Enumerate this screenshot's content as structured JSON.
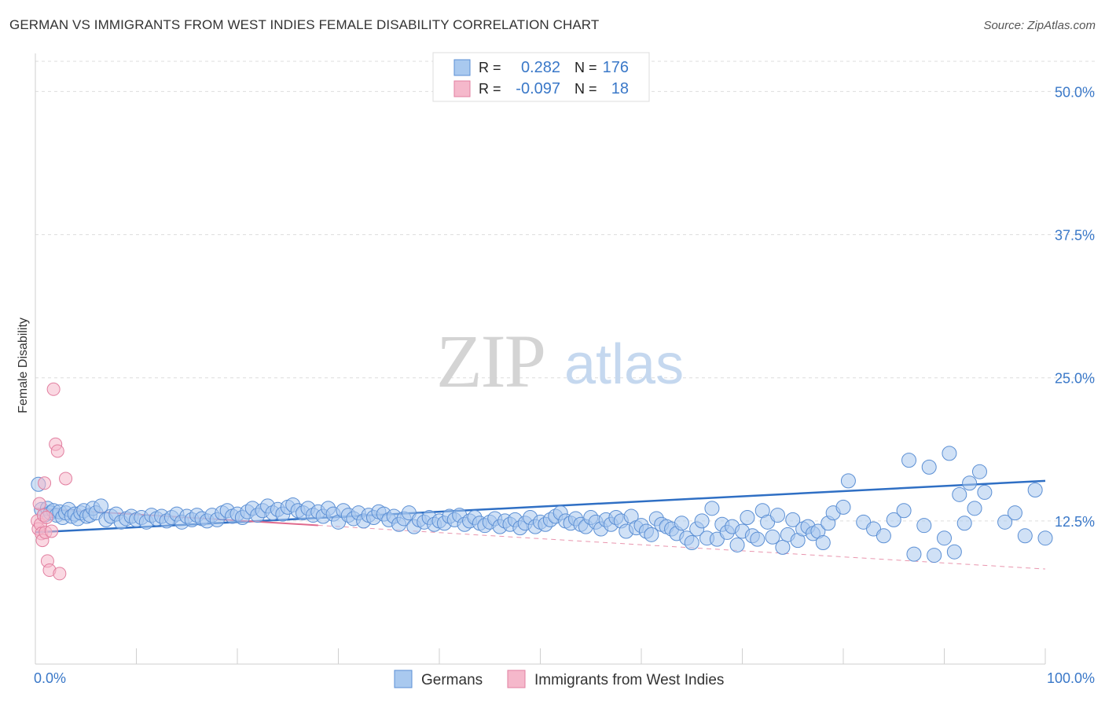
{
  "title": "GERMAN VS IMMIGRANTS FROM WEST INDIES FEMALE DISABILITY CORRELATION CHART",
  "source": "Source: ZipAtlas.com",
  "watermark": {
    "zip": "ZIP",
    "atlas": "atlas"
  },
  "colors": {
    "germans_fill": "#a9c9ef",
    "germans_stroke": "#5b8fd4",
    "germans_line": "#2f6fc4",
    "wi_fill": "#f5b8cb",
    "wi_stroke": "#e27fa0",
    "wi_line": "#e06a8d",
    "tick_label": "#3a78c8",
    "grid": "#dddddd"
  },
  "legend_top": [
    {
      "r_label": "R =",
      "r_value": "0.282",
      "n_label": "N =",
      "n_value": "176",
      "series": "germans"
    },
    {
      "r_label": "R =",
      "r_value": "-0.097",
      "n_label": "N =",
      "n_value": "18",
      "series": "wi"
    }
  ],
  "chart_data": {
    "type": "scatter",
    "title": "GERMAN VS IMMIGRANTS FROM WEST INDIES FEMALE DISABILITY CORRELATION CHART",
    "xlabel": "",
    "ylabel": "Female Disability",
    "xlim": [
      0,
      100
    ],
    "ylim": [
      0,
      52.5
    ],
    "x_tick_labels": [
      "0.0%",
      "100.0%"
    ],
    "y_ticks": [
      12.5,
      25.0,
      37.5,
      50.0
    ],
    "y_tick_labels": [
      "12.5%",
      "25.0%",
      "37.5%",
      "50.0%"
    ],
    "grid": true,
    "legend_position": "bottom-center",
    "series": [
      {
        "name": "Germans",
        "trend": {
          "x": [
            0,
            100
          ],
          "y": [
            11.5,
            16.0
          ]
        },
        "points": [
          [
            0.3,
            15.7
          ],
          [
            0.6,
            13.5
          ],
          [
            0.9,
            13.0
          ],
          [
            1.2,
            13.6
          ],
          [
            1.5,
            13.2
          ],
          [
            1.8,
            13.4
          ],
          [
            2.1,
            13.0
          ],
          [
            2.4,
            13.3
          ],
          [
            2.7,
            12.8
          ],
          [
            3.0,
            13.2
          ],
          [
            3.3,
            13.5
          ],
          [
            3.6,
            12.9
          ],
          [
            3.9,
            13.1
          ],
          [
            4.2,
            12.7
          ],
          [
            4.5,
            13.2
          ],
          [
            4.8,
            13.4
          ],
          [
            5.1,
            12.9
          ],
          [
            5.4,
            13.0
          ],
          [
            5.7,
            13.6
          ],
          [
            6.0,
            13.2
          ],
          [
            6.5,
            13.8
          ],
          [
            7.0,
            12.6
          ],
          [
            7.5,
            12.9
          ],
          [
            8.0,
            13.1
          ],
          [
            8.5,
            12.4
          ],
          [
            9.0,
            12.7
          ],
          [
            9.5,
            12.9
          ],
          [
            10.0,
            12.6
          ],
          [
            10.5,
            12.8
          ],
          [
            11.0,
            12.4
          ],
          [
            11.5,
            13.0
          ],
          [
            12.0,
            12.7
          ],
          [
            12.5,
            12.9
          ],
          [
            13.0,
            12.5
          ],
          [
            13.5,
            12.8
          ],
          [
            14.0,
            13.1
          ],
          [
            14.5,
            12.4
          ],
          [
            15.0,
            12.9
          ],
          [
            15.5,
            12.6
          ],
          [
            16.0,
            13.0
          ],
          [
            16.5,
            12.7
          ],
          [
            17.0,
            12.5
          ],
          [
            17.5,
            13.0
          ],
          [
            18.0,
            12.6
          ],
          [
            18.5,
            13.2
          ],
          [
            19.0,
            13.4
          ],
          [
            19.5,
            12.9
          ],
          [
            20.0,
            13.1
          ],
          [
            20.5,
            12.8
          ],
          [
            21.0,
            13.3
          ],
          [
            21.5,
            13.6
          ],
          [
            22.0,
            13.0
          ],
          [
            22.5,
            13.4
          ],
          [
            23.0,
            13.8
          ],
          [
            23.5,
            13.2
          ],
          [
            24.0,
            13.5
          ],
          [
            24.5,
            13.1
          ],
          [
            25.0,
            13.7
          ],
          [
            25.5,
            13.9
          ],
          [
            26.0,
            13.4
          ],
          [
            26.5,
            13.2
          ],
          [
            27.0,
            13.6
          ],
          [
            27.5,
            13.0
          ],
          [
            28.0,
            13.3
          ],
          [
            28.5,
            12.9
          ],
          [
            29.0,
            13.6
          ],
          [
            29.5,
            13.1
          ],
          [
            30.0,
            12.4
          ],
          [
            30.5,
            13.4
          ],
          [
            31.0,
            13.0
          ],
          [
            31.5,
            12.7
          ],
          [
            32.0,
            13.2
          ],
          [
            32.5,
            12.5
          ],
          [
            33.0,
            13.0
          ],
          [
            33.5,
            12.8
          ],
          [
            34.0,
            13.3
          ],
          [
            34.5,
            13.1
          ],
          [
            35.0,
            12.6
          ],
          [
            35.5,
            12.9
          ],
          [
            36.0,
            12.2
          ],
          [
            36.5,
            12.7
          ],
          [
            37.0,
            13.2
          ],
          [
            37.5,
            12.0
          ],
          [
            38.0,
            12.6
          ],
          [
            38.5,
            12.4
          ],
          [
            39.0,
            12.8
          ],
          [
            39.5,
            12.2
          ],
          [
            40.0,
            12.5
          ],
          [
            40.5,
            12.3
          ],
          [
            41.0,
            12.9
          ],
          [
            41.5,
            12.6
          ],
          [
            42.0,
            13.0
          ],
          [
            42.5,
            12.2
          ],
          [
            43.0,
            12.5
          ],
          [
            43.5,
            12.8
          ],
          [
            44.0,
            12.3
          ],
          [
            44.5,
            12.1
          ],
          [
            45.0,
            12.4
          ],
          [
            45.5,
            12.7
          ],
          [
            46.0,
            12.0
          ],
          [
            46.5,
            12.5
          ],
          [
            47.0,
            12.2
          ],
          [
            47.5,
            12.6
          ],
          [
            48.0,
            11.9
          ],
          [
            48.5,
            12.3
          ],
          [
            49.0,
            12.8
          ],
          [
            49.5,
            12.0
          ],
          [
            50.0,
            12.4
          ],
          [
            50.5,
            12.2
          ],
          [
            51.0,
            12.6
          ],
          [
            51.5,
            12.9
          ],
          [
            52.0,
            13.2
          ],
          [
            52.5,
            12.5
          ],
          [
            53.0,
            12.3
          ],
          [
            53.5,
            12.7
          ],
          [
            54.0,
            12.2
          ],
          [
            54.5,
            12.0
          ],
          [
            55.0,
            12.8
          ],
          [
            55.5,
            12.4
          ],
          [
            56.0,
            11.8
          ],
          [
            56.5,
            12.6
          ],
          [
            57.0,
            12.2
          ],
          [
            57.5,
            12.8
          ],
          [
            58.0,
            12.5
          ],
          [
            58.5,
            11.6
          ],
          [
            59.0,
            12.9
          ],
          [
            59.5,
            11.9
          ],
          [
            60.0,
            12.1
          ],
          [
            60.5,
            11.6
          ],
          [
            61.0,
            11.3
          ],
          [
            61.5,
            12.7
          ],
          [
            62.0,
            12.2
          ],
          [
            62.5,
            12.0
          ],
          [
            63.0,
            11.8
          ],
          [
            63.5,
            11.4
          ],
          [
            64.0,
            12.3
          ],
          [
            64.5,
            11.0
          ],
          [
            65.0,
            10.6
          ],
          [
            65.5,
            11.8
          ],
          [
            66.0,
            12.5
          ],
          [
            66.5,
            11.0
          ],
          [
            67.0,
            13.6
          ],
          [
            67.5,
            10.9
          ],
          [
            68.0,
            12.2
          ],
          [
            68.5,
            11.5
          ],
          [
            69.0,
            12.0
          ],
          [
            69.5,
            10.4
          ],
          [
            70.0,
            11.6
          ],
          [
            70.5,
            12.8
          ],
          [
            71.0,
            11.2
          ],
          [
            71.5,
            10.9
          ],
          [
            72.0,
            13.4
          ],
          [
            72.5,
            12.4
          ],
          [
            73.0,
            11.1
          ],
          [
            73.5,
            13.0
          ],
          [
            74.0,
            10.2
          ],
          [
            74.5,
            11.3
          ],
          [
            75.0,
            12.6
          ],
          [
            75.5,
            10.8
          ],
          [
            76.0,
            11.8
          ],
          [
            76.5,
            12.0
          ],
          [
            77.0,
            11.4
          ],
          [
            77.5,
            11.6
          ],
          [
            78.0,
            10.6
          ],
          [
            78.5,
            12.3
          ],
          [
            79.0,
            13.2
          ],
          [
            80.0,
            13.7
          ],
          [
            82.0,
            12.4
          ],
          [
            83.0,
            11.8
          ],
          [
            84.0,
            11.2
          ],
          [
            85.0,
            12.6
          ],
          [
            86.0,
            13.4
          ],
          [
            87.0,
            9.6
          ],
          [
            88.0,
            12.1
          ],
          [
            89.0,
            9.5
          ],
          [
            90.0,
            11.0
          ],
          [
            91.0,
            9.8
          ],
          [
            92.0,
            12.3
          ],
          [
            93.0,
            13.6
          ],
          [
            80.5,
            16.0
          ],
          [
            86.5,
            17.8
          ],
          [
            88.5,
            17.2
          ],
          [
            90.5,
            18.4
          ],
          [
            91.5,
            14.8
          ],
          [
            92.5,
            15.8
          ],
          [
            93.5,
            16.8
          ],
          [
            94.0,
            15.0
          ],
          [
            96.0,
            12.4
          ],
          [
            97.0,
            13.2
          ],
          [
            98.0,
            11.2
          ],
          [
            99.0,
            15.2
          ],
          [
            100.0,
            11.0
          ]
        ]
      },
      {
        "name": "Immigrants from West Indies",
        "trend": {
          "x": [
            0,
            100
          ],
          "y": [
            13.6,
            8.3
          ]
        },
        "points": [
          [
            0.2,
            12.5
          ],
          [
            0.3,
            11.8
          ],
          [
            0.4,
            14.0
          ],
          [
            0.5,
            12.2
          ],
          [
            0.6,
            11.4
          ],
          [
            0.7,
            10.8
          ],
          [
            0.8,
            13.0
          ],
          [
            0.9,
            15.8
          ],
          [
            1.0,
            11.5
          ],
          [
            1.1,
            12.8
          ],
          [
            1.2,
            9.0
          ],
          [
            1.4,
            8.2
          ],
          [
            1.6,
            11.6
          ],
          [
            1.8,
            24.0
          ],
          [
            2.0,
            19.2
          ],
          [
            2.2,
            18.6
          ],
          [
            2.4,
            7.9
          ],
          [
            3.0,
            16.2
          ]
        ]
      }
    ]
  },
  "legend_bottom": [
    {
      "label": "Germans",
      "series": "germans"
    },
    {
      "label": "Immigrants from West Indies",
      "series": "wi"
    }
  ]
}
